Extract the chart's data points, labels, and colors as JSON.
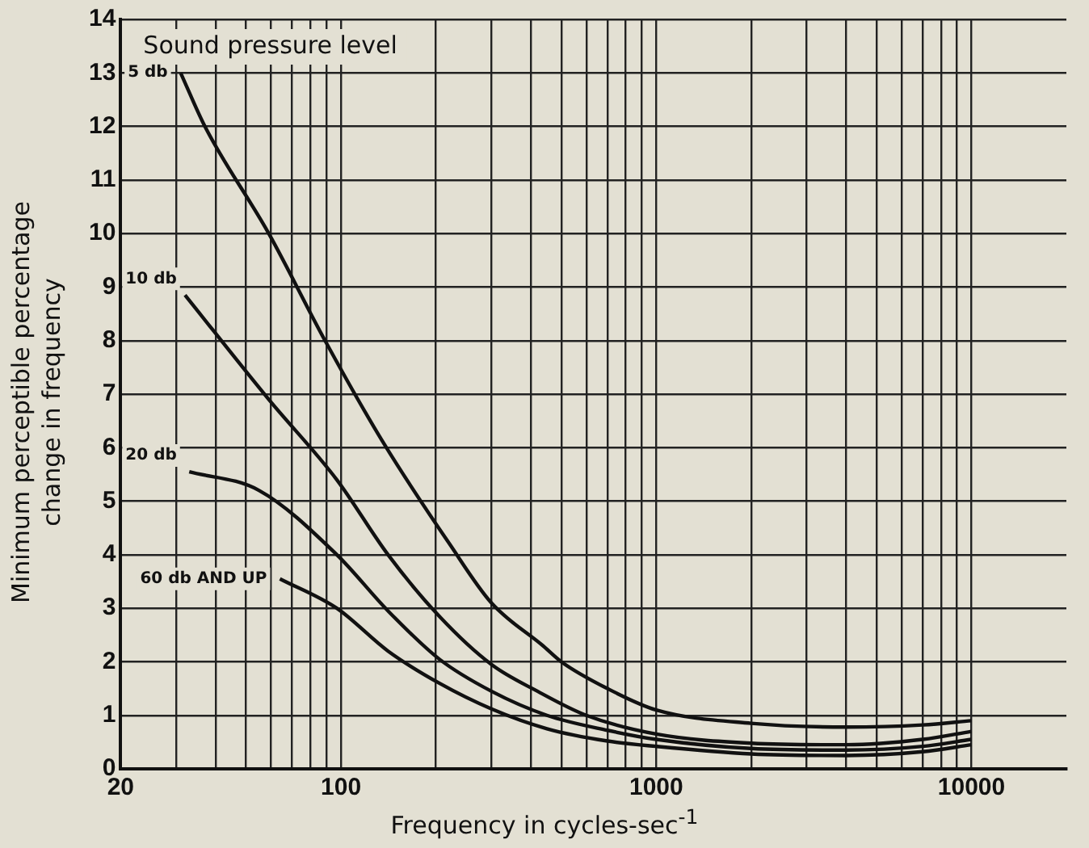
{
  "chart_data": {
    "type": "line",
    "xlabel": "Frequency in cycles-sec$^{-1}$",
    "ylabel": "Minimum perceptible percentage\nchange in frequency",
    "legend_title": "Sound pressure level",
    "log": "x",
    "grid": true,
    "marker": "none",
    "line_style": "solid",
    "xlim": [
      20,
      20000
    ],
    "ylim": [
      0,
      14
    ],
    "xticks": [
      20,
      {
        "value": 30,
        "label": null
      },
      {
        "value": 40,
        "label": null
      },
      {
        "value": 50,
        "label": null
      },
      {
        "value": 60,
        "label": null
      },
      {
        "value": 70,
        "label": null
      },
      {
        "value": 80,
        "label": null
      },
      {
        "value": 90,
        "label": null
      },
      100,
      {
        "value": 200,
        "label": null
      },
      {
        "value": 300,
        "label": null
      },
      {
        "value": 400,
        "label": null
      },
      {
        "value": 500,
        "label": null
      },
      {
        "value": 600,
        "label": null
      },
      {
        "value": 700,
        "label": null
      },
      {
        "value": 800,
        "label": null
      },
      {
        "value": 900,
        "label": null
      },
      1000,
      {
        "value": 2000,
        "label": null
      },
      {
        "value": 3000,
        "label": null
      },
      {
        "value": 4000,
        "label": null
      },
      {
        "value": 5000,
        "label": null
      },
      {
        "value": 6000,
        "label": null
      },
      {
        "value": 7000,
        "label": null
      },
      {
        "value": 8000,
        "label": null
      },
      {
        "value": 9000,
        "label": null
      },
      10000
    ],
    "yticks": [
      0,
      1,
      2,
      3,
      4,
      5,
      6,
      7,
      8,
      9,
      10,
      11,
      12,
      13,
      14
    ],
    "series": [
      {
        "name": "5 db",
        "color": "#111111",
        "x": [
          31,
          37,
          59,
          89,
          136,
          221,
          300,
          437,
          500,
          700,
          1000,
          2000,
          4000,
          7000,
          10000
        ],
        "values": [
          13.0,
          12.0,
          10.0,
          8.0,
          6.1,
          4.2,
          3.1,
          2.3,
          2.0,
          1.5,
          1.1,
          0.85,
          0.78,
          0.82,
          0.9
        ]
      },
      {
        "name": "10 db",
        "color": "#111111",
        "x": [
          32,
          59,
          97,
          141,
          205,
          300,
          420,
          600,
          1000,
          2000,
          4000,
          7000,
          10000
        ],
        "values": [
          8.85,
          6.9,
          5.4,
          4.0,
          2.85,
          1.95,
          1.45,
          1.0,
          0.65,
          0.48,
          0.45,
          0.55,
          0.7
        ]
      },
      {
        "name": "20 db",
        "color": "#111111",
        "x": [
          33,
          55,
          97,
          141,
          205,
          300,
          450,
          700,
          1000,
          2000,
          4000,
          7000,
          10000
        ],
        "values": [
          5.55,
          5.2,
          4.0,
          2.95,
          2.05,
          1.45,
          1.0,
          0.72,
          0.55,
          0.38,
          0.35,
          0.42,
          0.55
        ]
      },
      {
        "name": "60 db AND UP",
        "color": "#111111",
        "x": [
          64,
          97,
          141,
          205,
          300,
          450,
          700,
          1000,
          2000,
          4000,
          7000,
          10000
        ],
        "values": [
          3.55,
          3.0,
          2.2,
          1.6,
          1.12,
          0.75,
          0.52,
          0.42,
          0.28,
          0.25,
          0.32,
          0.45
        ]
      }
    ]
  }
}
